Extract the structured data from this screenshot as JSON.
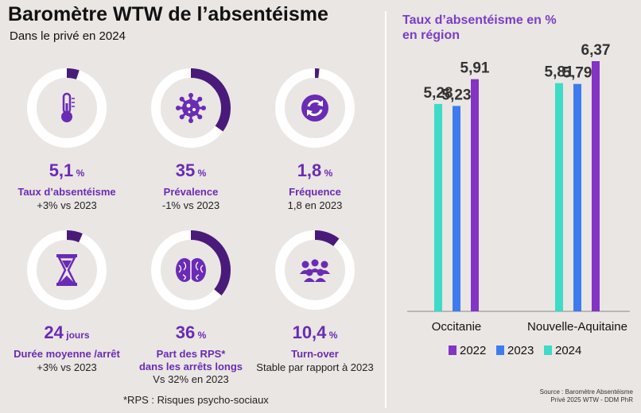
{
  "header": {
    "title": "Baromètre WTW de l’absentéisme",
    "subtitle": "Dans le privé en 2024"
  },
  "colors": {
    "purple": "#6a2bb5",
    "bar2022": "#8333c5",
    "bar2023": "#3d7bef",
    "bar2024": "#3ddbc8",
    "background": "#eae6e3"
  },
  "kpis": [
    {
      "value": "5,1",
      "unit": "%",
      "label": "Taux d’absentéisme",
      "label2": "",
      "sub": "+3% vs 2023",
      "icon": "thermometer-icon",
      "fill": 0.051
    },
    {
      "value": "35",
      "unit": "%",
      "label": "Prévalence",
      "label2": "",
      "sub": "-1% vs 2023",
      "icon": "virus-icon",
      "fill": 0.35
    },
    {
      "value": "1,8",
      "unit": "%",
      "label": "Fréquence",
      "label2": "",
      "sub": "1,8 en 2023",
      "icon": "refresh-icon",
      "fill": 0.018
    },
    {
      "value": "24",
      "unit": "jours",
      "label": "Durée moyenne /arrêt",
      "label2": "",
      "sub": "+3% vs 2023",
      "icon": "hourglass-icon",
      "fill": 0.065
    },
    {
      "value": "36",
      "unit": "%",
      "label": "Part des RPS*",
      "label2": "dans les arrêts longs",
      "sub": "Vs 32% en 2023",
      "icon": "brain-icon",
      "fill": 0.36
    },
    {
      "value": "10,4",
      "unit": "%",
      "label": "Turn-over",
      "label2": "",
      "sub": "Stable par rapport à 2023",
      "icon": "people-icon",
      "fill": 0.104
    }
  ],
  "footnote": "*RPS : Risques psycho-sociaux",
  "chart_data": {
    "type": "bar",
    "title": "Taux d’absentéisme en % en région",
    "title_lines": [
      "Taux d’absentéisme en %",
      "en région"
    ],
    "categories": [
      "Occitanie",
      "Nouvelle-Aquitaine"
    ],
    "series": [
      {
        "name": "2022",
        "color": "#8333c5",
        "values": [
          5.91,
          6.37
        ],
        "labels": [
          "5,91",
          "6,37"
        ]
      },
      {
        "name": "2023",
        "color": "#3d7bef",
        "values": [
          5.23,
          5.79
        ],
        "labels": [
          "5,23",
          "5,79"
        ]
      },
      {
        "name": "2024",
        "color": "#3ddbc8",
        "values": [
          5.28,
          5.81
        ],
        "labels": [
          "5,28",
          "5,81"
        ]
      }
    ],
    "display_order": [
      2,
      1,
      0
    ],
    "legend_position": "bottom",
    "grid": false,
    "ylim": [
      0,
      6.5
    ]
  },
  "source_lines": [
    "Source : Baromètre Absentéisme",
    "Privé 2025 WTW - DDM PhR"
  ]
}
